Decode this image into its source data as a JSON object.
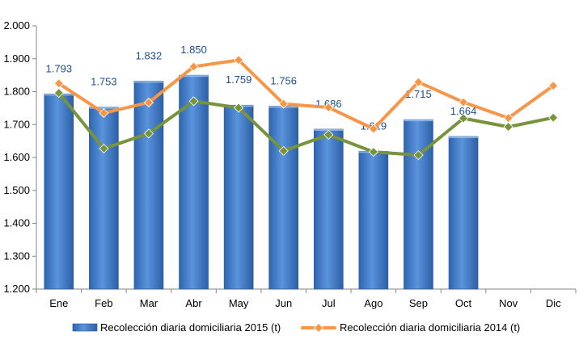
{
  "chart_data": {
    "type": "bar",
    "title": "",
    "xlabel": "",
    "ylabel": "",
    "ylim": [
      1200,
      2000
    ],
    "yticks": [
      1200,
      1300,
      1400,
      1500,
      1600,
      1700,
      1800,
      1900,
      2000
    ],
    "ytick_labels": [
      "1.200",
      "1.300",
      "1.400",
      "1.500",
      "1.600",
      "1.700",
      "1.800",
      "1.900",
      "2.000"
    ],
    "categories": [
      "Ene",
      "Feb",
      "Mar",
      "Abr",
      "May",
      "Jun",
      "Jul",
      "Ago",
      "Sep",
      "Oct",
      "Nov",
      "Dic"
    ],
    "grid": false,
    "legend_position": "bottom",
    "series": [
      {
        "name": "Recolección diaria domiciliaria 2015 (t)",
        "type": "bar",
        "color": "#3A78C9",
        "values": [
          1793,
          1753,
          1832,
          1850,
          1759,
          1756,
          1686,
          1619,
          1715,
          1664,
          null,
          null
        ],
        "labels": [
          "1.793",
          "1.753",
          "1.832",
          "1.850",
          "1.759",
          "1.756",
          "1.686",
          "1.619",
          "1.715",
          "1.664",
          "",
          ""
        ]
      },
      {
        "name": "Recolección diaria domiciliaria 2014 (t)",
        "type": "line",
        "color": "#F79646",
        "values": [
          1825,
          1735,
          1767,
          1876,
          1896,
          1763,
          1752,
          1687,
          1829,
          1768,
          1720,
          1818
        ]
      },
      {
        "name": "",
        "type": "line",
        "color": "#77933C",
        "values": [
          1796,
          1627,
          1673,
          1771,
          1751,
          1620,
          1669,
          1617,
          1607,
          1719,
          1693,
          1721
        ]
      }
    ]
  }
}
